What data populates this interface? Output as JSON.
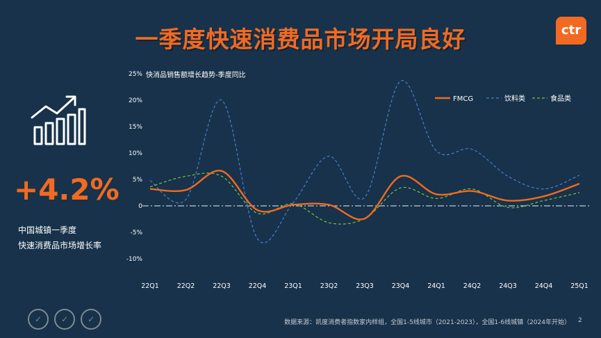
{
  "page": {
    "title": "一季度快速消费品市场开局良好",
    "logo": "ctr",
    "kpi_value": "+4.2%",
    "kpi_desc_line1": "中国城镇一季度",
    "kpi_desc_line2": "快速消费品市场增长率",
    "source": "数据来源：凯度消费者指数家内样组，全国1-5线城市（2021-2023），全国1-6线城镇（2024年开始）",
    "page_number": "2",
    "colors": {
      "background": "#17324a",
      "accent": "#f26a21"
    }
  },
  "chart_data": {
    "type": "line",
    "title": "快消品销售额增长趋势-季度同比",
    "categories": [
      "22Q1",
      "22Q2",
      "22Q3",
      "22Q4",
      "23Q1",
      "23Q2",
      "23Q3",
      "23Q4",
      "24Q1",
      "24Q2",
      "24Q3",
      "24Q4",
      "25Q1"
    ],
    "yticks": [
      "25%",
      "20%",
      "15%",
      "10%",
      "5%",
      "0",
      "-5%",
      "-10%"
    ],
    "ylim": [
      -10,
      25
    ],
    "legend_position": "top-right",
    "series": [
      {
        "name": "FMCG",
        "color": "#f26a21",
        "style": "solid",
        "values": [
          3.2,
          3.0,
          6.6,
          -0.8,
          0.2,
          0.2,
          -2.4,
          5.6,
          2.2,
          2.8,
          1.0,
          1.8,
          4.2
        ]
      },
      {
        "name": "饮料类",
        "color": "#4a7fd4",
        "style": "dashed",
        "values": [
          4.8,
          1.2,
          20.0,
          -6.2,
          0.6,
          9.4,
          1.6,
          23.6,
          10.4,
          10.7,
          5.6,
          3.2,
          5.8
        ]
      },
      {
        "name": "食品类",
        "color": "#7cc242",
        "style": "dashed",
        "values": [
          3.6,
          5.6,
          5.6,
          -1.4,
          0.4,
          -3.2,
          -2.4,
          3.4,
          1.4,
          3.2,
          -0.3,
          1.0,
          2.5
        ]
      }
    ]
  }
}
